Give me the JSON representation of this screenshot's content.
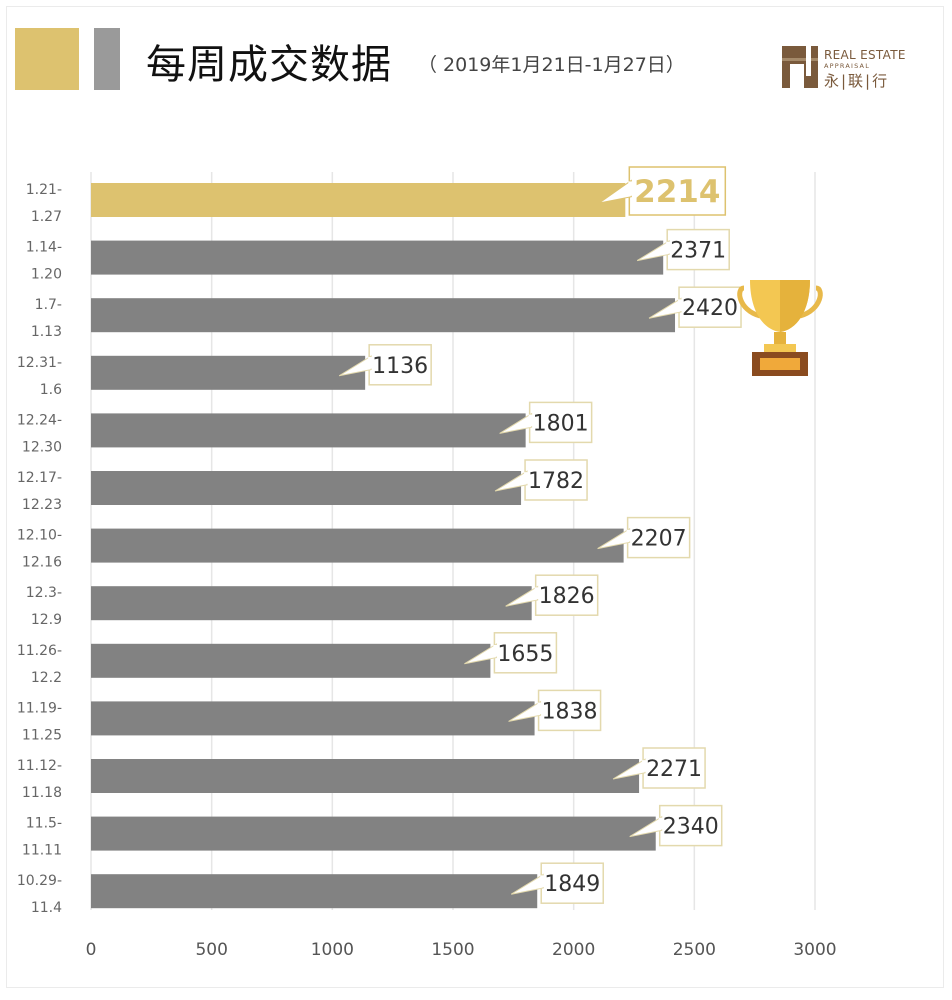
{
  "header": {
    "title": "每周成交数据",
    "subtitle": "（ 2019年1月21日-1月27日）",
    "logo": {
      "en": "REAL ESTATE",
      "en_sub": "APPRAISAL",
      "cn": "永|联|行"
    }
  },
  "colors": {
    "highlight": "#ddc26f",
    "bar": "#828282",
    "grid": "#e6e6e6",
    "tick": "#555555"
  },
  "icons": {
    "trophy": "trophy-icon"
  },
  "chart_data": {
    "type": "bar",
    "orientation": "horizontal",
    "categories": [
      [
        "1.21-",
        "1.27"
      ],
      [
        "1.14-",
        "1.20"
      ],
      [
        "1.7-",
        "1.13"
      ],
      [
        "12.31-",
        "1.6"
      ],
      [
        "12.24-",
        "12.30"
      ],
      [
        "12.17-",
        "12.23"
      ],
      [
        "12.10-",
        "12.16"
      ],
      [
        "12.3-",
        "12.9"
      ],
      [
        "11.26-",
        "12.2"
      ],
      [
        "11.19-",
        "11.25"
      ],
      [
        "11.12-",
        "11.18"
      ],
      [
        "11.5-",
        "11.11"
      ],
      [
        "10.29-",
        "11.4"
      ]
    ],
    "values": [
      2214,
      2371,
      2420,
      1136,
      1801,
      1782,
      2207,
      1826,
      1655,
      1838,
      2271,
      2340,
      1849
    ],
    "highlight_index": 0,
    "max_index": 2,
    "xlim": [
      0,
      3000
    ],
    "xticks": [
      0,
      500,
      1000,
      1500,
      2000,
      2500,
      3000
    ],
    "grid": true
  }
}
